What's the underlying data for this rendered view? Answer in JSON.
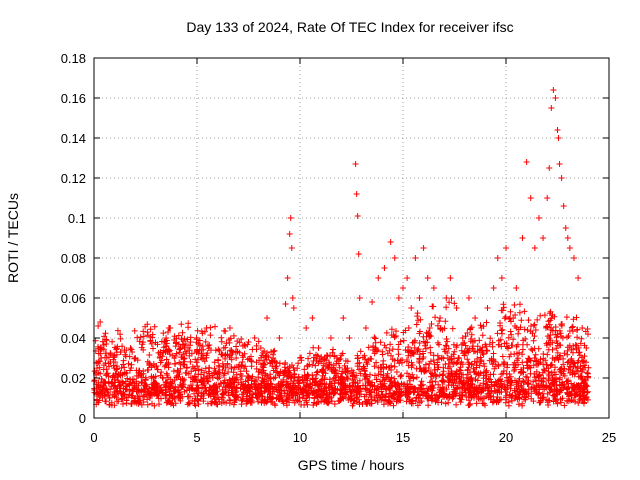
{
  "chart_data": {
    "type": "scatter",
    "title": "Day 133 of 2024, Rate Of TEC Index for receiver ifsc",
    "xlabel": "GPS time / hours",
    "ylabel": "ROTI / TECUs",
    "xlim": [
      0,
      25
    ],
    "ylim": [
      0,
      0.18
    ],
    "x_ticks": [
      0,
      5,
      10,
      15,
      20,
      25
    ],
    "x_tick_labels": [
      "0",
      "5",
      "10",
      "15",
      "20",
      "25"
    ],
    "y_ticks": [
      0,
      0.02,
      0.04,
      0.06,
      0.08,
      0.1,
      0.12,
      0.14,
      0.16,
      0.18
    ],
    "y_tick_labels": [
      "0",
      "0.02",
      "0.04",
      "0.06",
      "0.08",
      "0.1",
      "0.12",
      "0.14",
      "0.16",
      "0.18"
    ],
    "grid": true,
    "marker": "+",
    "marker_color": "#ff0000",
    "series": [
      {
        "name": "ROTI",
        "x": [
          0.1,
          0.2,
          0.3,
          0.35,
          0.5,
          0.8,
          1.0,
          1.3,
          1.5,
          1.8,
          2.0,
          2.3,
          2.6,
          2.9,
          3.2,
          3.5,
          3.7,
          3.9,
          4.2,
          4.5,
          4.8,
          5.0,
          5.3,
          5.6,
          6.0,
          6.3,
          6.6,
          6.9,
          7.2,
          7.5,
          7.8,
          8.1,
          8.4,
          8.7,
          9.0,
          9.3,
          9.4,
          9.5,
          9.55,
          9.6,
          9.65,
          9.7,
          10.0,
          10.3,
          10.6,
          10.9,
          11.2,
          11.5,
          11.8,
          12.1,
          12.4,
          12.7,
          12.75,
          12.8,
          12.85,
          12.9,
          13.2,
          13.5,
          13.8,
          14.1,
          14.4,
          14.6,
          14.8,
          15.0,
          15.2,
          15.4,
          15.6,
          15.8,
          16.0,
          16.2,
          16.3,
          16.5,
          16.8,
          17.1,
          17.3,
          17.6,
          17.9,
          18.2,
          18.5,
          18.8,
          19.1,
          19.4,
          19.6,
          19.8,
          20.0,
          20.2,
          20.5,
          20.8,
          21.0,
          21.2,
          21.4,
          21.6,
          21.8,
          22.0,
          22.1,
          22.2,
          22.3,
          22.4,
          22.5,
          22.55,
          22.6,
          22.7,
          22.8,
          22.9,
          23.0,
          23.1,
          23.3,
          23.5,
          23.7,
          23.9
        ],
        "y": [
          0.012,
          0.046,
          0.048,
          0.03,
          0.018,
          0.028,
          0.02,
          0.033,
          0.022,
          0.025,
          0.03,
          0.018,
          0.024,
          0.02,
          0.03,
          0.04,
          0.045,
          0.03,
          0.035,
          0.025,
          0.02,
          0.018,
          0.03,
          0.025,
          0.022,
          0.035,
          0.045,
          0.03,
          0.028,
          0.038,
          0.04,
          0.035,
          0.05,
          0.03,
          0.04,
          0.057,
          0.07,
          0.092,
          0.1,
          0.085,
          0.06,
          0.055,
          0.03,
          0.045,
          0.05,
          0.035,
          0.02,
          0.04,
          0.03,
          0.05,
          0.04,
          0.127,
          0.112,
          0.101,
          0.082,
          0.06,
          0.045,
          0.058,
          0.07,
          0.075,
          0.088,
          0.08,
          0.06,
          0.065,
          0.07,
          0.055,
          0.08,
          0.06,
          0.085,
          0.07,
          0.045,
          0.065,
          0.05,
          0.06,
          0.07,
          0.055,
          0.04,
          0.06,
          0.05,
          0.045,
          0.055,
          0.065,
          0.08,
          0.07,
          0.085,
          0.05,
          0.065,
          0.09,
          0.128,
          0.11,
          0.085,
          0.1,
          0.09,
          0.11,
          0.125,
          0.155,
          0.164,
          0.16,
          0.144,
          0.14,
          0.127,
          0.12,
          0.106,
          0.095,
          0.09,
          0.085,
          0.08,
          0.07,
          0.045,
          0.035
        ]
      }
    ]
  }
}
